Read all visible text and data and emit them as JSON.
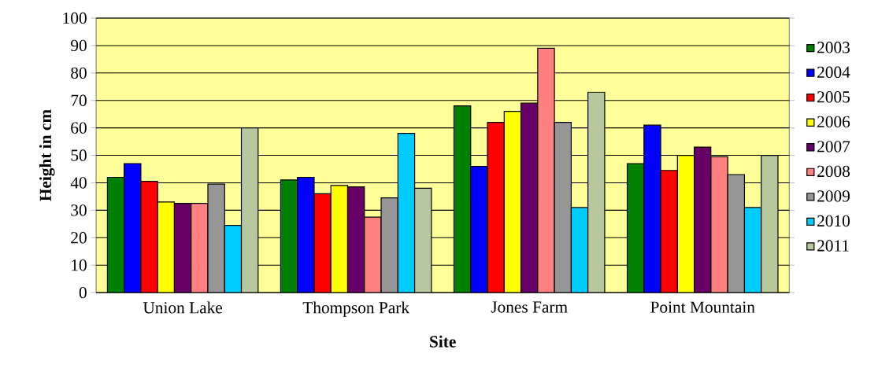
{
  "chart_data": {
    "type": "bar",
    "xlabel": "Site",
    "ylabel": "Height in cm",
    "categories": [
      "Union Lake",
      "Thompson Park",
      "Jones Farm",
      "Point Mountain"
    ],
    "series": [
      {
        "name": "2003",
        "color": "#008000",
        "values": [
          42,
          41,
          68,
          47
        ]
      },
      {
        "name": "2004",
        "color": "#0000ff",
        "values": [
          47,
          42,
          46,
          61
        ]
      },
      {
        "name": "2005",
        "color": "#ff0000",
        "values": [
          40.5,
          36,
          62,
          44.5
        ]
      },
      {
        "name": "2006",
        "color": "#ffff00",
        "values": [
          33,
          39,
          66,
          50
        ]
      },
      {
        "name": "2007",
        "color": "#660066",
        "values": [
          32.5,
          38.5,
          69,
          53
        ]
      },
      {
        "name": "2008",
        "color": "#ff8080",
        "values": [
          32.5,
          27.5,
          89,
          49.5
        ]
      },
      {
        "name": "2009",
        "color": "#969696",
        "values": [
          39.5,
          34.5,
          62,
          43
        ]
      },
      {
        "name": "2010",
        "color": "#00ccff",
        "values": [
          24.5,
          58,
          31,
          31
        ]
      },
      {
        "name": "2011",
        "color": "#b7c79e",
        "values": [
          60,
          38,
          73,
          50
        ]
      }
    ],
    "ylim": [
      0,
      100
    ],
    "yticks": [
      0,
      10,
      20,
      30,
      40,
      50,
      60,
      70,
      80,
      90,
      100
    ],
    "grid": "y",
    "legend": "right"
  }
}
